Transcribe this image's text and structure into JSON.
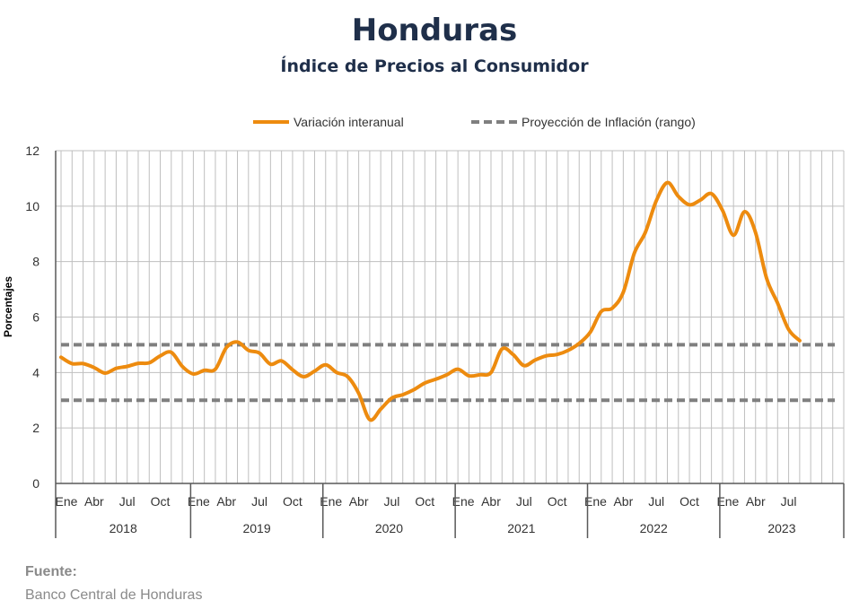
{
  "chart_data": {
    "type": "line",
    "title": "Honduras",
    "subtitle": "Índice de Precios al Consumidor",
    "ylabel": "Porcentajes",
    "xlabel": "",
    "ylim": [
      0,
      12
    ],
    "yticks": [
      0,
      2,
      4,
      6,
      8,
      10,
      12
    ],
    "grid": true,
    "legend_position": "top",
    "x_start": "2018-01",
    "month_tick_labels": [
      "Ene",
      "Abr",
      "Jul",
      "Oct"
    ],
    "years": [
      "2018",
      "2019",
      "2020",
      "2021",
      "2022",
      "2023"
    ],
    "series": [
      {
        "name": "Variación interanual",
        "color": "#ED8B0F",
        "style": "solid",
        "values": [
          4.55,
          4.32,
          4.32,
          4.18,
          3.98,
          4.15,
          4.22,
          4.33,
          4.35,
          4.6,
          4.73,
          4.22,
          3.95,
          4.08,
          4.12,
          4.9,
          5.1,
          4.8,
          4.7,
          4.3,
          4.42,
          4.1,
          3.85,
          4.05,
          4.28,
          4.0,
          3.85,
          3.25,
          2.3,
          2.68,
          3.08,
          3.2,
          3.38,
          3.62,
          3.76,
          3.92,
          4.12,
          3.88,
          3.92,
          4.0,
          4.85,
          4.65,
          4.25,
          4.45,
          4.6,
          4.65,
          4.8,
          5.05,
          5.45,
          6.2,
          6.32,
          6.9,
          8.3,
          9.05,
          10.2,
          10.85,
          10.35,
          10.05,
          10.22,
          10.45,
          9.85,
          8.95,
          9.8,
          9.05,
          7.4,
          6.5,
          5.55,
          5.15
        ]
      },
      {
        "name": "Proyección de Inflación (rango)",
        "color": "#7F7F7F",
        "style": "dashed",
        "lower": 3,
        "upper": 5
      }
    ]
  },
  "source": {
    "label": "Fuente:",
    "text": "Banco Central de Honduras"
  }
}
